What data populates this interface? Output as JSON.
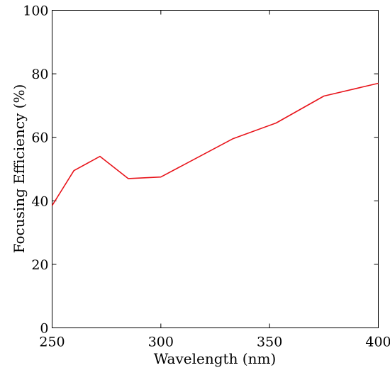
{
  "chart_data": {
    "type": "line",
    "title": "",
    "xlabel": "Wavelength (nm)",
    "ylabel": "Focusing Efficiency (%)",
    "xlim": [
      250,
      400
    ],
    "ylim": [
      0,
      100
    ],
    "xticks": [
      250,
      300,
      350,
      400
    ],
    "yticks": [
      0,
      20,
      40,
      60,
      80,
      100
    ],
    "grid": false,
    "series": [
      {
        "color": "#e8141b",
        "x": [
          250,
          260,
          272,
          285,
          300,
          333,
          353,
          375,
          400
        ],
        "y": [
          38.5,
          49.5,
          54,
          47,
          47.5,
          59.5,
          64.5,
          73,
          77
        ]
      }
    ]
  }
}
